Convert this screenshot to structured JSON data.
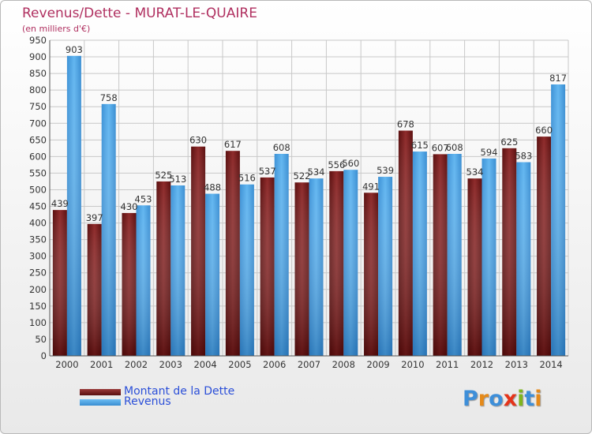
{
  "chart_data": {
    "type": "bar",
    "title": "Revenus/Dette - MURAT-LE-QUAIRE",
    "subtitle": "(en milliers d'€)",
    "categories": [
      "2000",
      "2001",
      "2002",
      "2003",
      "2004",
      "2005",
      "2006",
      "2007",
      "2008",
      "2009",
      "2010",
      "2011",
      "2012",
      "2013",
      "2014"
    ],
    "series": [
      {
        "name": "Montant de la Dette",
        "color": "#7a1f1f",
        "values": [
          439,
          397,
          430,
          525,
          630,
          617,
          537,
          522,
          556,
          491,
          678,
          607,
          534,
          625,
          660
        ]
      },
      {
        "name": "Revenus",
        "color": "#4aa3e6",
        "values": [
          903,
          758,
          453,
          513,
          488,
          516,
          608,
          534,
          560,
          539,
          615,
          608,
          594,
          583,
          817
        ]
      }
    ],
    "ylim": [
      0,
      950
    ],
    "ytick_step": 50,
    "grid": true,
    "legend_position": "bottom-left"
  },
  "logo": {
    "text": "Proxiti",
    "letters": [
      "P",
      "r",
      "o",
      "x",
      "i",
      "t",
      "i"
    ],
    "colors": [
      "#3e8fd9",
      "#e58a1a",
      "#3e8fd9",
      "#e5341a",
      "#7fb51f",
      "#3e8fd9",
      "#e58a1a"
    ]
  }
}
